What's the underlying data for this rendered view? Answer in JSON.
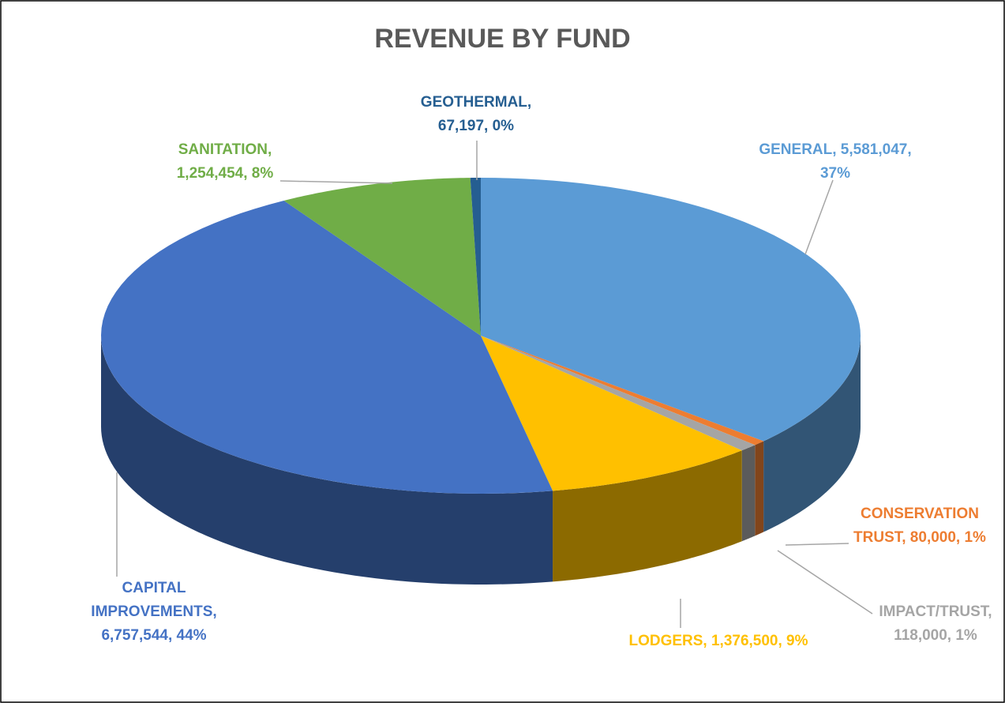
{
  "chart_data": {
    "type": "pie3d",
    "title": "REVENUE BY FUND",
    "values": [
      5581047,
      80000,
      118000,
      1376500,
      6757544,
      1254454,
      67197
    ],
    "value_labels": [
      "GENERAL, 5,581,047, 37%",
      "CONSERVATION TRUST, 80,000, 1%",
      "IMPACT/TRUST, 118,000, 1%",
      "LODGERS, 1,376,500, 9%",
      "CAPITAL IMPROVEMENTS, 6,757,544, 44%",
      "SANITATION, 1,254,454, 8%",
      "GEOTHERMAL, 67,197, 0%"
    ],
    "colors": [
      "#5b9bd5",
      "#ed7d31",
      "#a5a5a5",
      "#ffc000",
      "#4472c4",
      "#70ad47",
      "#255e91"
    ]
  }
}
